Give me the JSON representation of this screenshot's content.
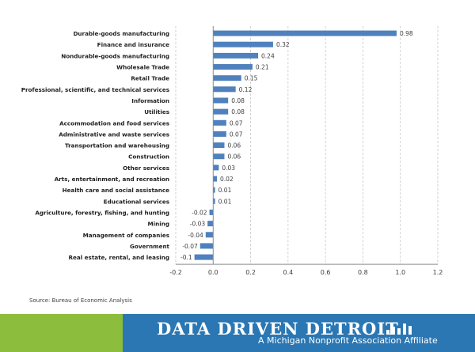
{
  "chart_data": {
    "type": "bar",
    "orientation": "horizontal",
    "categories": [
      "Durable-goods manufacturing",
      "Finance and insurance",
      "Nondurable-goods manufacturing",
      "Wholesale Trade",
      "Retail Trade",
      "Professional, scientific, and technical services",
      "Information",
      "Utilities",
      "Accommodation and food services",
      "Administrative and waste services",
      "Transportation and warehousing",
      "Construction",
      "Other services",
      "Arts, entertainment, and recreation",
      "Health care and social assistance",
      "Educational services",
      "Agriculture, forestry, fishing, and hunting",
      "Mining",
      "Management of companies",
      "Government",
      "Real estate, rental, and leasing"
    ],
    "values": [
      0.98,
      0.32,
      0.24,
      0.21,
      0.15,
      0.12,
      0.08,
      0.08,
      0.07,
      0.07,
      0.06,
      0.06,
      0.03,
      0.02,
      0.01,
      0.01,
      -0.02,
      -0.03,
      -0.04,
      -0.07,
      -0.1
    ],
    "value_labels": [
      "0.98",
      "0.32",
      "0.24",
      "0.21",
      "0.15",
      "0.12",
      "0.08",
      "0.08",
      "0.07",
      "0.07",
      "0.06",
      "0.06",
      "0.03",
      "0.02",
      "0.01",
      "0.01",
      "-0.02",
      "-0.03",
      "-0.04",
      "-0.07",
      "-0.1"
    ],
    "xlim": [
      -0.2,
      1.2
    ],
    "xticks": [
      -0.2,
      0,
      0.2,
      0.4,
      0.6,
      0.8,
      1,
      1.2
    ],
    "xtick_labels": [
      "-0.2",
      "0.0",
      "0.2",
      "0.4",
      "0.6",
      "0.8",
      "1.0",
      "1.2"
    ],
    "bar_color": "#4f81bd",
    "grid": "vertical-dashed"
  },
  "source": "Source: Bureau of Economic Analysis",
  "footer": {
    "brand": "DATA DRIVEN DETROIT",
    "tagline": "A Michigan Nonprofit Association Affiliate",
    "green": "#8dbd3c",
    "blue": "#2b77b3"
  }
}
